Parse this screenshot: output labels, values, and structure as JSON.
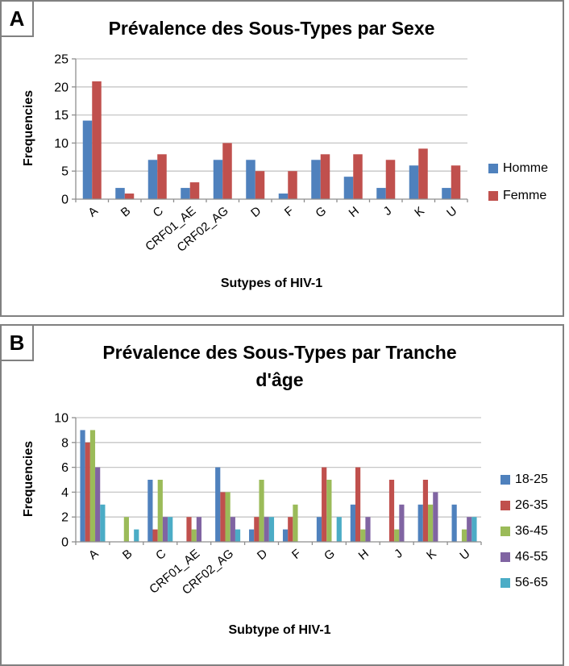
{
  "panels": [
    {
      "label": "A"
    },
    {
      "label": "B"
    }
  ],
  "chart_data": [
    {
      "type": "bar",
      "panel": "A",
      "title": "Prévalence des Sous-Types par Sexe",
      "xlabel": "Sutypes of HIV-1",
      "ylabel": "Frequencies",
      "ylim": [
        0,
        25
      ],
      "ytick_step": 5,
      "grid": true,
      "legend_position": "right",
      "categories": [
        "A",
        "B",
        "C",
        "CRF01_AE",
        "CRF02_AG",
        "D",
        "F",
        "G",
        "H",
        "J",
        "K",
        "U"
      ],
      "series": [
        {
          "name": "Homme",
          "color": "#4F81BD",
          "values": [
            14,
            2,
            7,
            2,
            7,
            7,
            1,
            7,
            4,
            2,
            6,
            2
          ]
        },
        {
          "name": "Femme",
          "color": "#C0504D",
          "values": [
            21,
            1,
            8,
            3,
            10,
            5,
            5,
            8,
            8,
            7,
            9,
            6
          ]
        }
      ]
    },
    {
      "type": "bar",
      "panel": "B",
      "title": "Prévalence des Sous-Types par Tranche d'âge",
      "xlabel": "Subtype of HIV-1",
      "ylabel": "Frequencies",
      "ylim": [
        0,
        10
      ],
      "ytick_step": 2,
      "grid": true,
      "legend_position": "right",
      "categories": [
        "A",
        "B",
        "C",
        "CRF01_AE",
        "CRF02_AG",
        "D",
        "F",
        "G",
        "H",
        "J",
        "K",
        "U"
      ],
      "series": [
        {
          "name": "18-25",
          "color": "#4F81BD",
          "values": [
            9,
            0,
            5,
            0,
            6,
            1,
            1,
            2,
            3,
            0,
            3,
            3
          ]
        },
        {
          "name": "26-35",
          "color": "#C0504D",
          "values": [
            8,
            0,
            1,
            2,
            4,
            2,
            2,
            6,
            6,
            5,
            5,
            0
          ]
        },
        {
          "name": "36-45",
          "color": "#9BBB59",
          "values": [
            9,
            2,
            5,
            1,
            4,
            5,
            3,
            5,
            1,
            1,
            3,
            1
          ]
        },
        {
          "name": "46-55",
          "color": "#8064A2",
          "values": [
            6,
            0,
            2,
            2,
            2,
            2,
            0,
            0,
            2,
            3,
            4,
            2
          ]
        },
        {
          "name": "56-65",
          "color": "#4BACC6",
          "values": [
            3,
            1,
            2,
            0,
            1,
            2,
            0,
            2,
            0,
            0,
            0,
            2
          ]
        }
      ]
    }
  ],
  "style": {
    "gridline_color": "#C6C6C6",
    "axis_color": "#8E8E8E",
    "panel_border_color": "#808080"
  }
}
